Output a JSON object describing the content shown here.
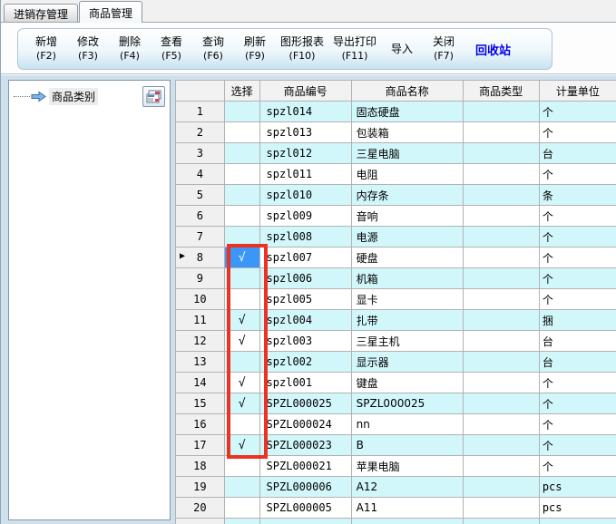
{
  "tabs": [
    {
      "label": "进销存管理",
      "active": false
    },
    {
      "label": "商品管理",
      "active": true
    }
  ],
  "toolbar": {
    "buttons": [
      {
        "label": "新增",
        "key": "(F2)"
      },
      {
        "label": "修改",
        "key": "(F3)"
      },
      {
        "label": "删除",
        "key": "(F4)"
      },
      {
        "label": "查看",
        "key": "(F5)"
      },
      {
        "label": "查询",
        "key": "(F6)"
      },
      {
        "label": "刷新",
        "key": "(F9)"
      },
      {
        "label": "图形报表",
        "key": "(F10)"
      },
      {
        "label": "导出打印",
        "key": "(F11)"
      },
      {
        "label": "导入",
        "key": ""
      },
      {
        "label": "关闭",
        "key": "(F7)"
      }
    ],
    "recycle_label": "回收站"
  },
  "sidebar": {
    "tree_root": "商品类别",
    "icons": [
      "tree-arrow-icon",
      "panel-toggle-icon"
    ]
  },
  "grid": {
    "columns": [
      "选择",
      "商品编号",
      "商品名称",
      "商品类型",
      "计量单位"
    ],
    "check_glyph": "√",
    "current_row_indicator": "▶",
    "current_row_num": "8",
    "rows": [
      {
        "num": "1",
        "checked": false,
        "code": "spzl014",
        "name": "固态硬盘",
        "type": "",
        "unit": "个"
      },
      {
        "num": "2",
        "checked": false,
        "code": "spzl013",
        "name": "包装箱",
        "type": "",
        "unit": "个"
      },
      {
        "num": "3",
        "checked": false,
        "code": "spzl012",
        "name": "三星电脑",
        "type": "",
        "unit": "台"
      },
      {
        "num": "4",
        "checked": false,
        "code": "spzl011",
        "name": "电阻",
        "type": "",
        "unit": "个"
      },
      {
        "num": "5",
        "checked": false,
        "code": "spzl010",
        "name": "内存条",
        "type": "",
        "unit": "条"
      },
      {
        "num": "6",
        "checked": false,
        "code": "spzl009",
        "name": "音响",
        "type": "",
        "unit": "个"
      },
      {
        "num": "7",
        "checked": false,
        "code": "spzl008",
        "name": "电源",
        "type": "",
        "unit": "个"
      },
      {
        "num": "8",
        "checked": true,
        "code": "spzl007",
        "name": "硬盘",
        "type": "",
        "unit": "个",
        "current": true,
        "check_cell_selected": true
      },
      {
        "num": "9",
        "checked": false,
        "code": "spzl006",
        "name": "机箱",
        "type": "",
        "unit": "个"
      },
      {
        "num": "10",
        "checked": false,
        "code": "spzl005",
        "name": "显卡",
        "type": "",
        "unit": "个"
      },
      {
        "num": "11",
        "checked": true,
        "code": "spzl004",
        "name": "扎带",
        "type": "",
        "unit": "捆"
      },
      {
        "num": "12",
        "checked": true,
        "code": "spzl003",
        "name": "三星主机",
        "type": "",
        "unit": "台"
      },
      {
        "num": "13",
        "checked": false,
        "code": "spzl002",
        "name": "显示器",
        "type": "",
        "unit": "台"
      },
      {
        "num": "14",
        "checked": true,
        "code": "spzl001",
        "name": "键盘",
        "type": "",
        "unit": "个"
      },
      {
        "num": "15",
        "checked": true,
        "code": "SPZL000025",
        "name": "SPZL000025",
        "type": "",
        "unit": "个"
      },
      {
        "num": "16",
        "checked": false,
        "code": "SPZL000024",
        "name": "nn",
        "type": "",
        "unit": "个"
      },
      {
        "num": "17",
        "checked": true,
        "code": "SPZL000023",
        "name": "B",
        "type": "",
        "unit": "个"
      },
      {
        "num": "18",
        "checked": false,
        "code": "SPZL000021",
        "name": "苹果电脑",
        "type": "",
        "unit": "个"
      },
      {
        "num": "19",
        "checked": false,
        "code": "SPZL000006",
        "name": "A12",
        "type": "",
        "unit": "pcs"
      },
      {
        "num": "20",
        "checked": false,
        "code": "SPZL000005",
        "name": "A11",
        "type": "",
        "unit": "pcs"
      },
      {
        "num": "",
        "checked": false,
        "code": "",
        "name": "",
        "type": "",
        "unit": ""
      }
    ]
  },
  "colors": {
    "row_alt_cyan": "#d2f7fb",
    "selected_cell_blue": "#3b96f7",
    "annotation_red": "#ec3323",
    "recycle_link_blue": "#0000e6",
    "toolbar_gradient_bottom": "#c8e3f2"
  },
  "annotation": {
    "shape": "red-rectangle",
    "covers": "选择 column rows 8-17"
  }
}
